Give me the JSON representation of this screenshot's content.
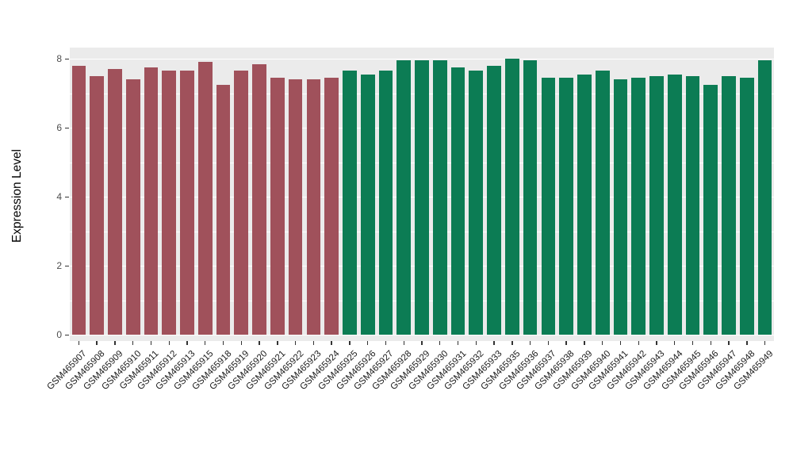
{
  "chart_data": {
    "type": "bar",
    "title": "",
    "xlabel": "",
    "ylabel": "Expression Level",
    "ylim": [
      0,
      8.4
    ],
    "yticks": [
      0,
      2,
      4,
      6,
      8
    ],
    "minor_yticks": [
      1,
      3,
      5,
      7
    ],
    "grid": "on",
    "legend": "none",
    "panel_bg": "#EBEBEB",
    "grid_color": "#FFFFFF",
    "x_tick_rotation": 45,
    "categories": [
      "GSM465907",
      "GSM465908",
      "GSM465909",
      "GSM465910",
      "GSM465911",
      "GSM465912",
      "GSM465913",
      "GSM465915",
      "GSM465918",
      "GSM465919",
      "GSM465920",
      "GSM465921",
      "GSM465922",
      "GSM465923",
      "GSM465924",
      "GSM465925",
      "GSM465926",
      "GSM465927",
      "GSM465928",
      "GSM465929",
      "GSM465930",
      "GSM465931",
      "GSM465932",
      "GSM465933",
      "GSM465935",
      "GSM465936",
      "GSM465937",
      "GSM465938",
      "GSM465939",
      "GSM465940",
      "GSM465941",
      "GSM465942",
      "GSM465943",
      "GSM465944",
      "GSM465945",
      "GSM465946",
      "GSM465947",
      "GSM465948",
      "GSM465949"
    ],
    "values": [
      7.8,
      7.5,
      7.7,
      7.4,
      7.75,
      7.65,
      7.65,
      7.9,
      7.25,
      7.65,
      7.85,
      7.45,
      7.4,
      7.4,
      7.45,
      7.65,
      7.55,
      7.65,
      7.95,
      7.95,
      7.95,
      7.75,
      7.65,
      7.8,
      8.0,
      7.95,
      7.45,
      7.45,
      7.55,
      7.65,
      7.4,
      7.45,
      7.5,
      7.55,
      7.5,
      7.25,
      7.5,
      7.45,
      7.95
    ],
    "groups": [
      "maroon",
      "maroon",
      "maroon",
      "maroon",
      "maroon",
      "maroon",
      "maroon",
      "maroon",
      "maroon",
      "maroon",
      "maroon",
      "maroon",
      "maroon",
      "maroon",
      "maroon",
      "green",
      "green",
      "green",
      "green",
      "green",
      "green",
      "green",
      "green",
      "green",
      "green",
      "green",
      "green",
      "green",
      "green",
      "green",
      "green",
      "green",
      "green",
      "green",
      "green",
      "green",
      "green",
      "green",
      "green"
    ],
    "group_colors": {
      "maroon": "#A0515B",
      "green": "#0C7C54"
    }
  }
}
